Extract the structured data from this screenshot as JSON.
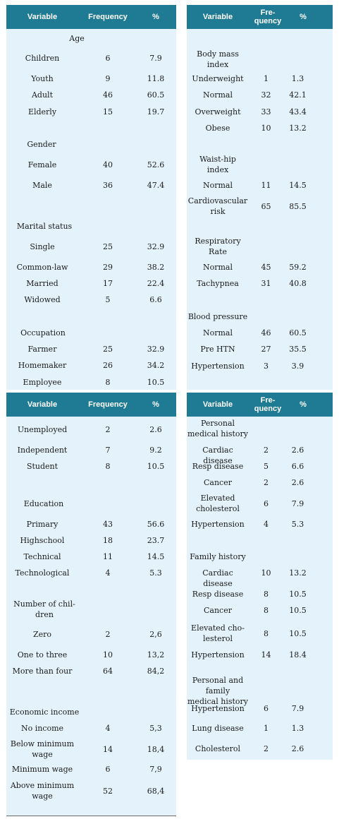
{
  "headers": {
    "variable": "Variable",
    "frequency": "Frequency",
    "frequency_short": "Fre-\nquency",
    "percent": "%"
  },
  "top_left": [
    {
      "label": "Age",
      "freq": "",
      "pct": "",
      "kind": "cat"
    },
    {
      "label": "Children",
      "freq": "6",
      "pct": "7.9"
    },
    {
      "label": "Youth",
      "freq": "9",
      "pct": "11.8"
    },
    {
      "label": "Adult",
      "freq": "46",
      "pct": "60.5"
    },
    {
      "label": "Elderly",
      "freq": "15",
      "pct": "19.7"
    },
    {
      "label": "Gender",
      "freq": "",
      "pct": "",
      "kind": "cat"
    },
    {
      "label": "Female",
      "freq": "40",
      "pct": "52.6"
    },
    {
      "label": "Male",
      "freq": "36",
      "pct": "47.4"
    },
    {
      "label": "Marital status",
      "freq": "",
      "pct": "",
      "kind": "cat"
    },
    {
      "label": "Single",
      "freq": "25",
      "pct": "32.9"
    },
    {
      "label": "Common-law",
      "freq": "29",
      "pct": "38.2"
    },
    {
      "label": "Married",
      "freq": "17",
      "pct": "22.4"
    },
    {
      "label": "Widowed",
      "freq": "5",
      "pct": "6.6"
    },
    {
      "label": "Occupation",
      "freq": "",
      "pct": "",
      "kind": "cat"
    },
    {
      "label": "Farmer",
      "freq": "25",
      "pct": "32.9"
    },
    {
      "label": "Homemaker",
      "freq": "26",
      "pct": "34.2"
    },
    {
      "label": "Employee",
      "freq": "8",
      "pct": "10.5"
    }
  ],
  "top_right": [
    {
      "label": "Body mass\nindex",
      "freq": "",
      "pct": "",
      "kind": "cat"
    },
    {
      "label": "Underweight",
      "freq": "1",
      "pct": "1.3"
    },
    {
      "label": "Normal",
      "freq": "32",
      "pct": "42.1"
    },
    {
      "label": "Overweight",
      "freq": "33",
      "pct": "43.4"
    },
    {
      "label": "Obese",
      "freq": "10",
      "pct": "13.2"
    },
    {
      "label": "Waist-hip\nindex",
      "freq": "",
      "pct": "",
      "kind": "cat"
    },
    {
      "label": "Normal",
      "freq": "11",
      "pct": "14.5"
    },
    {
      "label": "Cardiovascular\nrisk",
      "freq": "65",
      "pct": "85.5"
    },
    {
      "label": "Respiratory\nRate",
      "freq": "",
      "pct": "",
      "kind": "cat"
    },
    {
      "label": "Normal",
      "freq": "45",
      "pct": "59.2"
    },
    {
      "label": "Tachypnea",
      "freq": "31",
      "pct": "40.8"
    },
    {
      "label": "Blood pressure",
      "freq": "",
      "pct": "",
      "kind": "cat"
    },
    {
      "label": "Normal",
      "freq": "46",
      "pct": "60.5"
    },
    {
      "label": "Pre HTN",
      "freq": "27",
      "pct": "35.5"
    },
    {
      "label": "Hypertension",
      "freq": "3",
      "pct": "3.9"
    }
  ],
  "bottom_left": [
    {
      "label": "Unemployed",
      "freq": "2",
      "pct": "2.6"
    },
    {
      "label": "Independent",
      "freq": "7",
      "pct": "9.2"
    },
    {
      "label": "Student",
      "freq": "8",
      "pct": "10.5"
    },
    {
      "label": "Education",
      "freq": "",
      "pct": "",
      "kind": "cat"
    },
    {
      "label": "Primary",
      "freq": "43",
      "pct": "56.6"
    },
    {
      "label": "Highschool",
      "freq": "18",
      "pct": "23.7"
    },
    {
      "label": "Technical",
      "freq": "11",
      "pct": "14.5"
    },
    {
      "label": "Technological",
      "freq": "4",
      "pct": "5.3"
    },
    {
      "label": "Number of chil-\ndren",
      "freq": "",
      "pct": "",
      "kind": "cat"
    },
    {
      "label": "Zero",
      "freq": "2",
      "pct": "2,6"
    },
    {
      "label": "One to three",
      "freq": "10",
      "pct": "13,2"
    },
    {
      "label": "More than four",
      "freq": "64",
      "pct": "84,2"
    },
    {
      "label": "Economic income",
      "freq": "",
      "pct": "",
      "kind": "cat"
    },
    {
      "label": "No income",
      "freq": "4",
      "pct": "5,3"
    },
    {
      "label": "Below minimum\nwage",
      "freq": "14",
      "pct": "18,4"
    },
    {
      "label": "Minimum wage",
      "freq": "6",
      "pct": "7,9"
    },
    {
      "label": "Above minimum\nwage",
      "freq": "52",
      "pct": "68,4"
    }
  ],
  "bottom_right": [
    {
      "label": "Personal\nmedical history",
      "freq": "",
      "pct": "",
      "kind": "cat"
    },
    {
      "label": "Cardiac disease",
      "freq": "2",
      "pct": "2.6"
    },
    {
      "label": "Resp disease",
      "freq": "5",
      "pct": "6.6"
    },
    {
      "label": "Cancer",
      "freq": "2",
      "pct": "2.6"
    },
    {
      "label": "Elevated\ncholesterol",
      "freq": "6",
      "pct": "7.9"
    },
    {
      "label": "Hypertension",
      "freq": "4",
      "pct": "5.3"
    },
    {
      "label": "Family history",
      "freq": "",
      "pct": "",
      "kind": "cat"
    },
    {
      "label": "Cardiac disease",
      "freq": "10",
      "pct": "13.2"
    },
    {
      "label": "Resp disease",
      "freq": "8",
      "pct": "10.5"
    },
    {
      "label": "Cancer",
      "freq": "8",
      "pct": "10.5"
    },
    {
      "label": "Elevated cho-\nlesterol",
      "freq": "8",
      "pct": "10.5"
    },
    {
      "label": "Hypertension",
      "freq": "14",
      "pct": "18.4"
    },
    {
      "label": "Personal and family\nmedical history",
      "freq": "",
      "pct": "",
      "kind": "cat"
    },
    {
      "label": "Hypertension",
      "freq": "6",
      "pct": "7.9"
    },
    {
      "label": "Lung disease",
      "freq": "1",
      "pct": "1.3"
    },
    {
      "label": "Cholesterol",
      "freq": "2",
      "pct": "2.6"
    }
  ],
  "colors": {
    "header_bg": "#1f7a93",
    "panel_bg": "#e4f3fb",
    "header_text": "#ffffff"
  }
}
